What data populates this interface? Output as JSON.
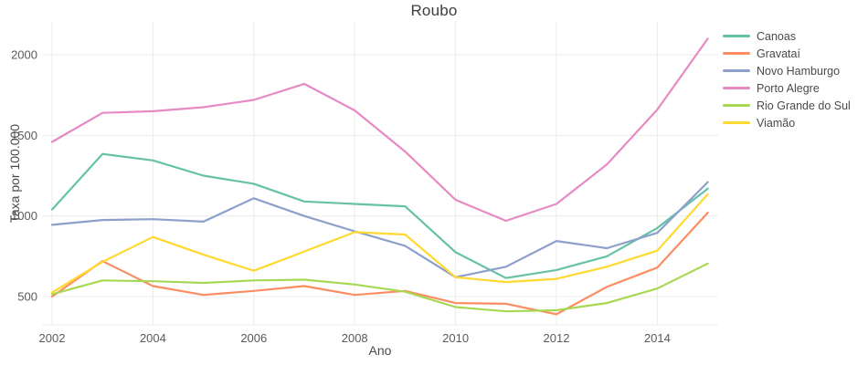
{
  "title": "Roubo",
  "colors": {
    "background": "#ffffff",
    "gridline": "#ececec",
    "tick_text": "#5a5a5a",
    "title_text": "#3d3d3d",
    "axis_title_text": "#4a4a4a"
  },
  "chart_data": {
    "type": "line",
    "title": "Roubo",
    "xlabel": "Ano",
    "ylabel": "Taxa por 100.000",
    "grid": true,
    "legend_position": "right",
    "x": [
      2002,
      2003,
      2004,
      2005,
      2006,
      2007,
      2008,
      2009,
      2010,
      2011,
      2012,
      2013,
      2014,
      2015
    ],
    "x_ticks": [
      2002,
      2004,
      2006,
      2008,
      2010,
      2012,
      2014
    ],
    "y_ticks": [
      500,
      1000,
      1500,
      2000
    ],
    "xlim": [
      2001.8,
      2015.2
    ],
    "ylim": [
      324,
      2210
    ],
    "series": [
      {
        "name": "Canoas",
        "color": "#66c2a5",
        "values": [
          1040,
          1385,
          1345,
          1250,
          1200,
          1090,
          1075,
          1060,
          775,
          615,
          665,
          750,
          925,
          1170
        ]
      },
      {
        "name": "Gravataí",
        "color": "#fc8d62",
        "values": [
          500,
          720,
          565,
          510,
          535,
          565,
          510,
          535,
          460,
          455,
          390,
          560,
          680,
          1020
        ]
      },
      {
        "name": "Novo Hamburgo",
        "color": "#8da0cb",
        "values": [
          945,
          975,
          980,
          965,
          1110,
          1000,
          905,
          815,
          620,
          685,
          845,
          800,
          895,
          1210
        ]
      },
      {
        "name": "Porto Alegre",
        "color": "#e78ac3",
        "values": [
          1460,
          1640,
          1650,
          1675,
          1720,
          1820,
          1655,
          1400,
          1100,
          970,
          1075,
          1320,
          1660,
          2100
        ]
      },
      {
        "name": "Rio Grande do Sul",
        "color": "#a6d854",
        "values": [
          515,
          600,
          595,
          585,
          600,
          605,
          575,
          530,
          435,
          408,
          415,
          460,
          550,
          705
        ]
      },
      {
        "name": "Viamão",
        "color": "#ffd92f",
        "values": [
          525,
          715,
          870,
          760,
          660,
          780,
          900,
          885,
          620,
          590,
          610,
          685,
          785,
          1135
        ]
      }
    ]
  }
}
